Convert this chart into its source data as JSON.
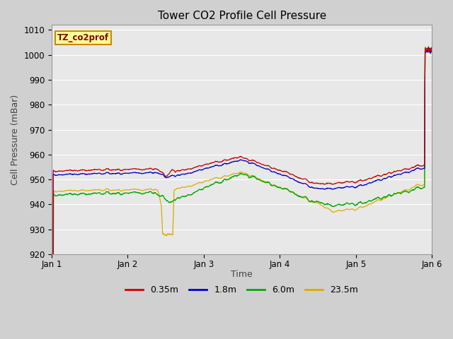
{
  "title": "Tower CO2 Profile Cell Pressure",
  "ylabel": "Cell Pressure (mBar)",
  "xlabel": "Time",
  "ylim": [
    920,
    1012
  ],
  "yticks": [
    920,
    930,
    940,
    950,
    960,
    970,
    980,
    990,
    1000,
    1010
  ],
  "xlim": [
    0,
    5
  ],
  "xtick_positions": [
    0,
    1,
    2,
    3,
    4,
    5
  ],
  "xtick_labels": [
    "Jan 1",
    "Jan 2",
    "Jan 3",
    "Jan 4",
    "Jan 5",
    "Jan 6"
  ],
  "fig_bg_color": "#d0d0d0",
  "plot_bg_color": "#e8e8e8",
  "grid_color": "#ffffff",
  "lines": {
    "0.35m": {
      "color": "#cc0000",
      "label": "0.35m"
    },
    "1.8m": {
      "color": "#0000cc",
      "label": "1.8m"
    },
    "6.0m": {
      "color": "#00aa00",
      "label": "6.0m"
    },
    "23.5m": {
      "color": "#ddaa00",
      "label": "23.5m"
    }
  },
  "legend_box_label": "TZ_co2prof",
  "legend_box_facecolor": "#ffff99",
  "legend_box_edgecolor": "#cc8800",
  "title_fontsize": 11,
  "axis_label_fontsize": 9,
  "tick_fontsize": 8.5
}
